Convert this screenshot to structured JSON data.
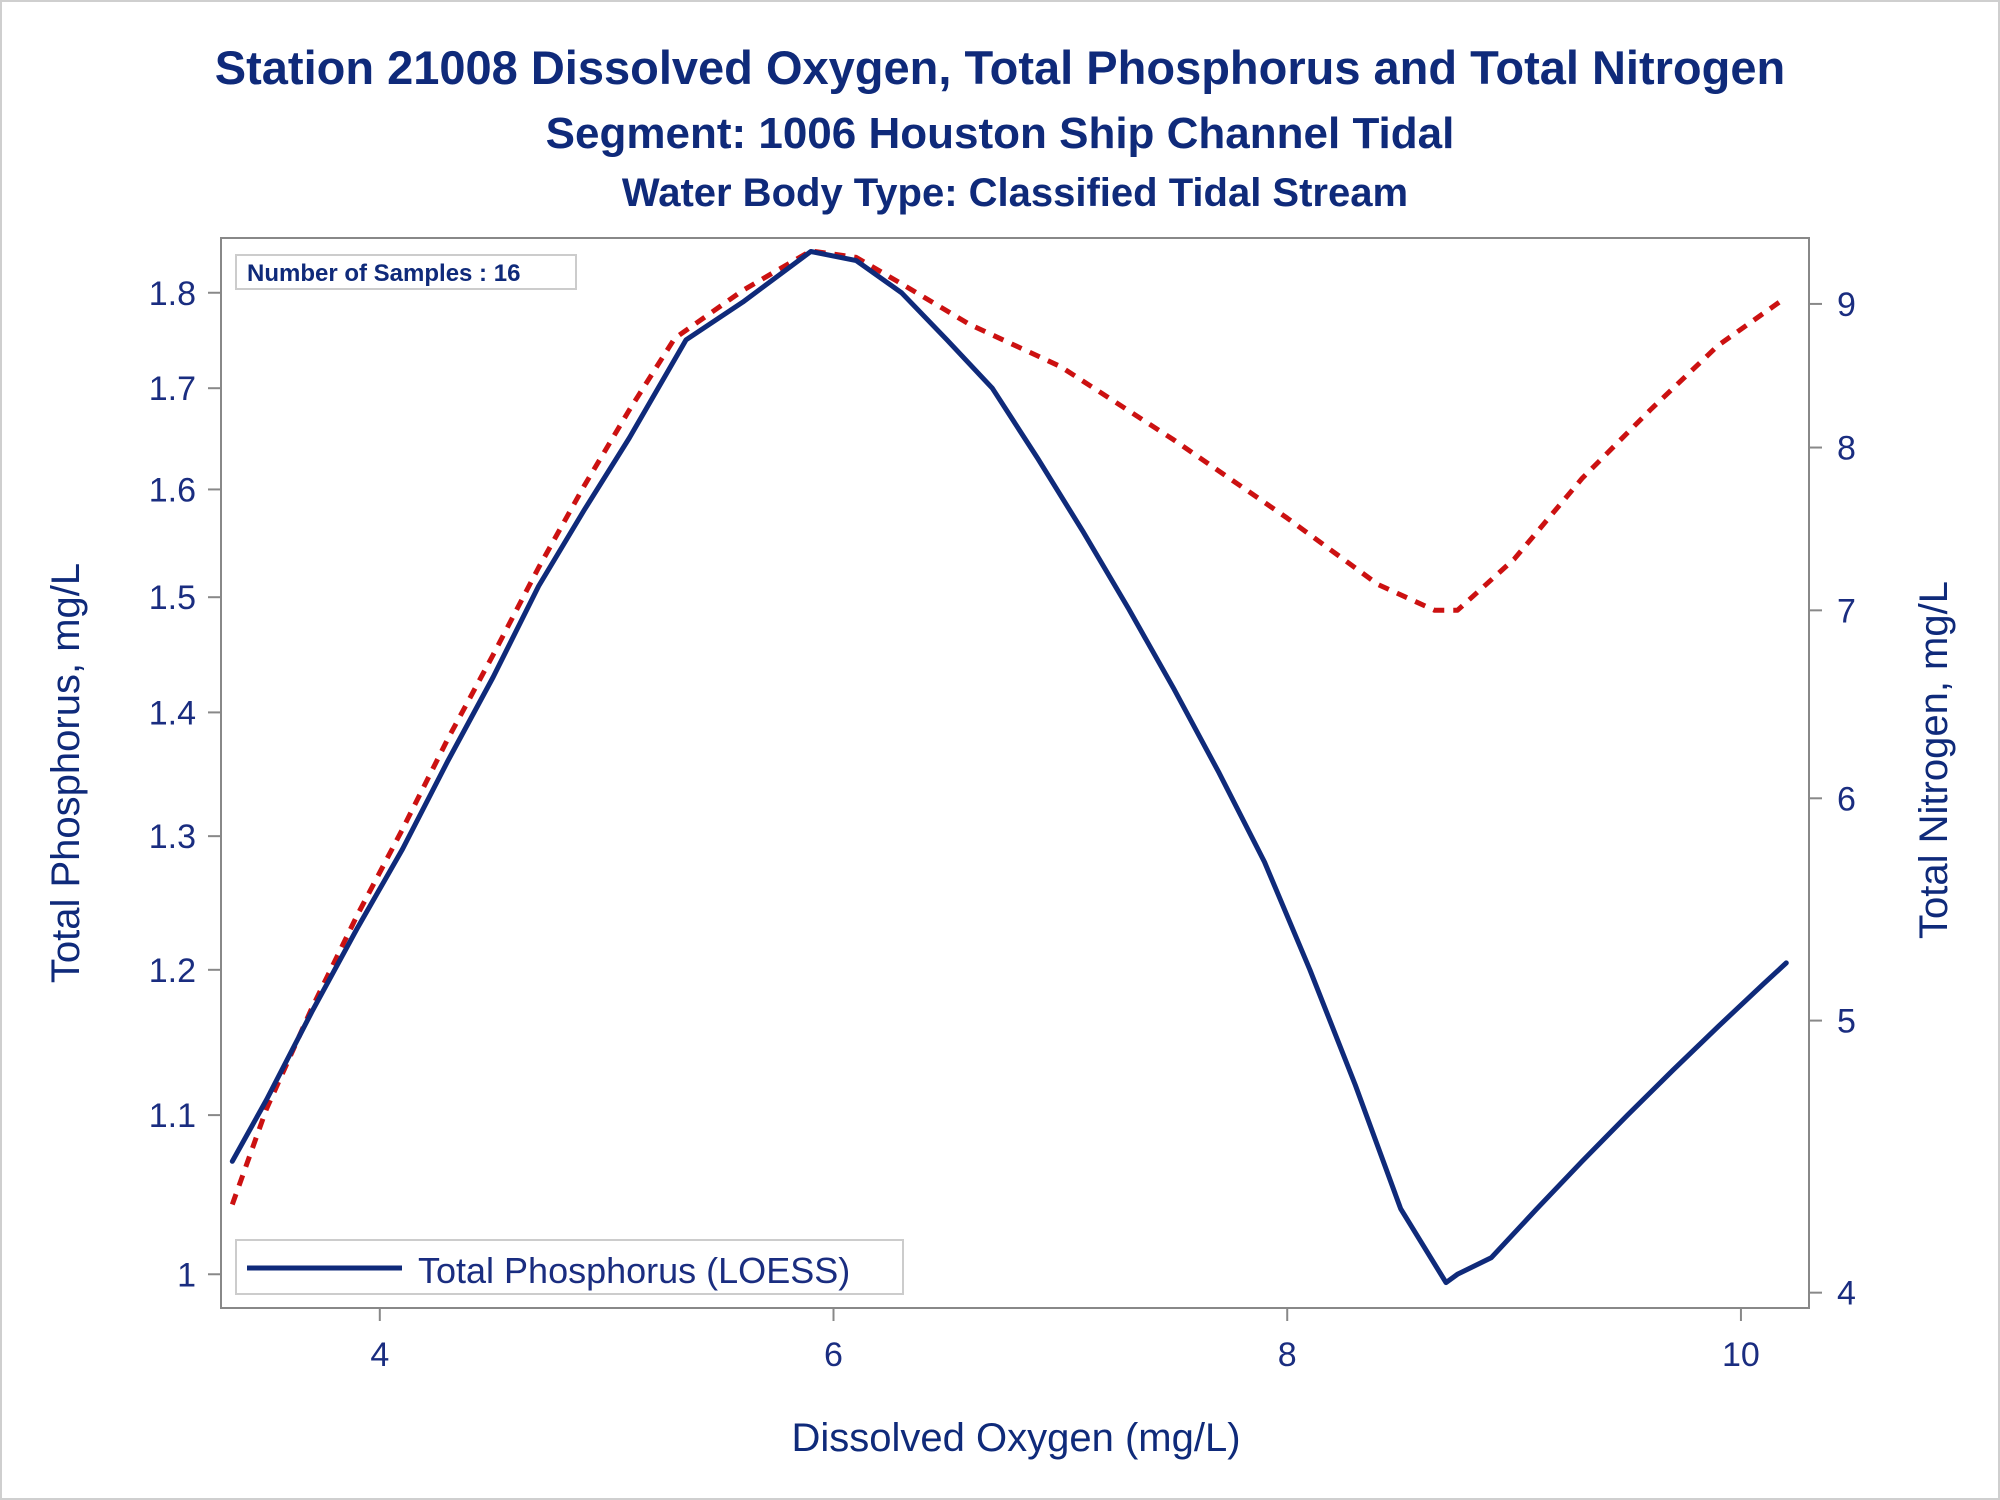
{
  "chart_data": {
    "type": "line",
    "title": "Station 21008  Dissolved Oxygen, Total Phosphorus and Total Nitrogen",
    "subtitle": "Segment: 1006  Houston Ship Channel Tidal",
    "subtitle2": "Water Body Type: Classified Tidal Stream",
    "xlabel": "Dissolved Oxygen (mg/L)",
    "ylabel_left": "Total Phosphorus, mg/L",
    "ylabel_right": "Total Nitrogen, mg/L",
    "xlim": [
      3.3,
      10.3
    ],
    "ylim_left": [
      0.98,
      1.86
    ],
    "ylim_right": [
      3.95,
      9.5
    ],
    "x_ticks": [
      "4",
      "6",
      "8",
      "10"
    ],
    "y_left_ticks": [
      "1",
      "1.1",
      "1.2",
      "1.3",
      "1.4",
      "1.5",
      "1.6",
      "1.7",
      "1.8"
    ],
    "y_right_ticks": [
      "4",
      "5",
      "6",
      "7",
      "8",
      "9"
    ],
    "inset_text": "Number of Samples : 16",
    "grid": false,
    "legend_position": "bottom-left",
    "series": [
      {
        "name": "Total Phosphorus (LOESS)",
        "axis": "left",
        "style": "solid",
        "color": "#0f2a7a",
        "x": [
          3.35,
          3.5,
          3.7,
          3.9,
          4.1,
          4.3,
          4.5,
          4.7,
          4.9,
          5.1,
          5.35,
          5.6,
          5.9,
          6.1,
          6.3,
          6.5,
          6.7,
          6.9,
          7.1,
          7.3,
          7.5,
          7.7,
          7.9,
          8.1,
          8.3,
          8.5,
          8.7,
          8.75,
          8.9,
          9.1,
          9.3,
          9.5,
          9.7,
          9.9,
          10.1,
          10.2
        ],
        "y": [
          1.07,
          1.11,
          1.17,
          1.23,
          1.29,
          1.36,
          1.43,
          1.51,
          1.58,
          1.65,
          1.75,
          1.79,
          1.845,
          1.835,
          1.8,
          1.75,
          1.7,
          1.63,
          1.56,
          1.49,
          1.42,
          1.35,
          1.28,
          1.2,
          1.12,
          1.04,
          0.995,
          1.0,
          1.01,
          1.04,
          1.07,
          1.1,
          1.13,
          1.16,
          1.19,
          1.205
        ]
      },
      {
        "name": "",
        "axis": "right",
        "style": "dashed",
        "color": "#cc1111",
        "x": [
          3.35,
          3.5,
          3.7,
          3.9,
          4.1,
          4.3,
          4.5,
          4.7,
          4.9,
          5.1,
          5.3,
          5.6,
          5.9,
          6.1,
          6.3,
          6.6,
          7.0,
          7.5,
          8.0,
          8.4,
          8.65,
          8.75,
          9.0,
          9.3,
          9.6,
          9.9,
          10.2
        ],
        "y": [
          4.3,
          4.65,
          5.05,
          5.45,
          5.85,
          6.3,
          6.75,
          7.25,
          7.75,
          8.25,
          8.75,
          9.1,
          9.4,
          9.35,
          9.15,
          8.85,
          8.55,
          8.05,
          7.55,
          7.15,
          7.0,
          7.0,
          7.3,
          7.8,
          8.25,
          8.7,
          9.05
        ]
      }
    ]
  }
}
